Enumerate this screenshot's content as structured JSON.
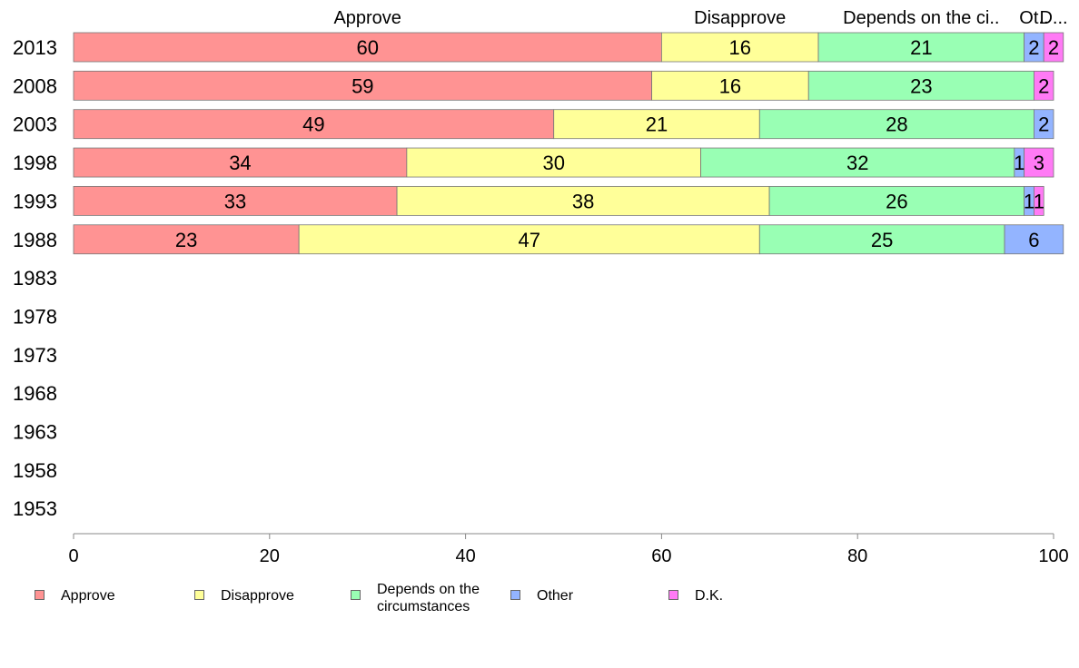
{
  "chart_data": {
    "type": "bar",
    "orientation": "horizontal",
    "stacked": true,
    "categories": [
      "2013",
      "2008",
      "2003",
      "1998",
      "1993",
      "1988",
      "1983",
      "1978",
      "1973",
      "1968",
      "1963",
      "1958",
      "1953"
    ],
    "series": [
      {
        "name": "Approve",
        "color": "#ff9393",
        "values": [
          60,
          59,
          49,
          34,
          33,
          23,
          null,
          null,
          null,
          null,
          null,
          null,
          null
        ]
      },
      {
        "name": "Disapprove",
        "color": "#ffff99",
        "values": [
          16,
          16,
          21,
          30,
          38,
          47,
          null,
          null,
          null,
          null,
          null,
          null,
          null
        ]
      },
      {
        "name": "Depends on the circumstances",
        "color": "#99ffb4",
        "values": [
          21,
          23,
          28,
          32,
          26,
          25,
          null,
          null,
          null,
          null,
          null,
          null,
          null
        ]
      },
      {
        "name": "Other",
        "color": "#93b4ff",
        "values": [
          2,
          0,
          2,
          1,
          1,
          6,
          null,
          null,
          null,
          null,
          null,
          null,
          null
        ]
      },
      {
        "name": "D.K.",
        "color": "#ff7af5",
        "values": [
          2,
          2,
          0,
          3,
          1,
          0,
          null,
          null,
          null,
          null,
          null,
          null,
          null
        ]
      }
    ],
    "top_labels": [
      "Approve",
      "Disapprove",
      "Depends on the ci..",
      "Ot..",
      "D..."
    ],
    "xlim": [
      0,
      100
    ],
    "xticks": [
      0,
      20,
      40,
      60,
      80,
      100
    ],
    "xlabel": "",
    "ylabel": "",
    "grid": false,
    "legend_position": "bottom",
    "legend_entries": [
      "Approve",
      "Disapprove",
      "Depends on the circumstances",
      "Other",
      "D.K."
    ]
  }
}
